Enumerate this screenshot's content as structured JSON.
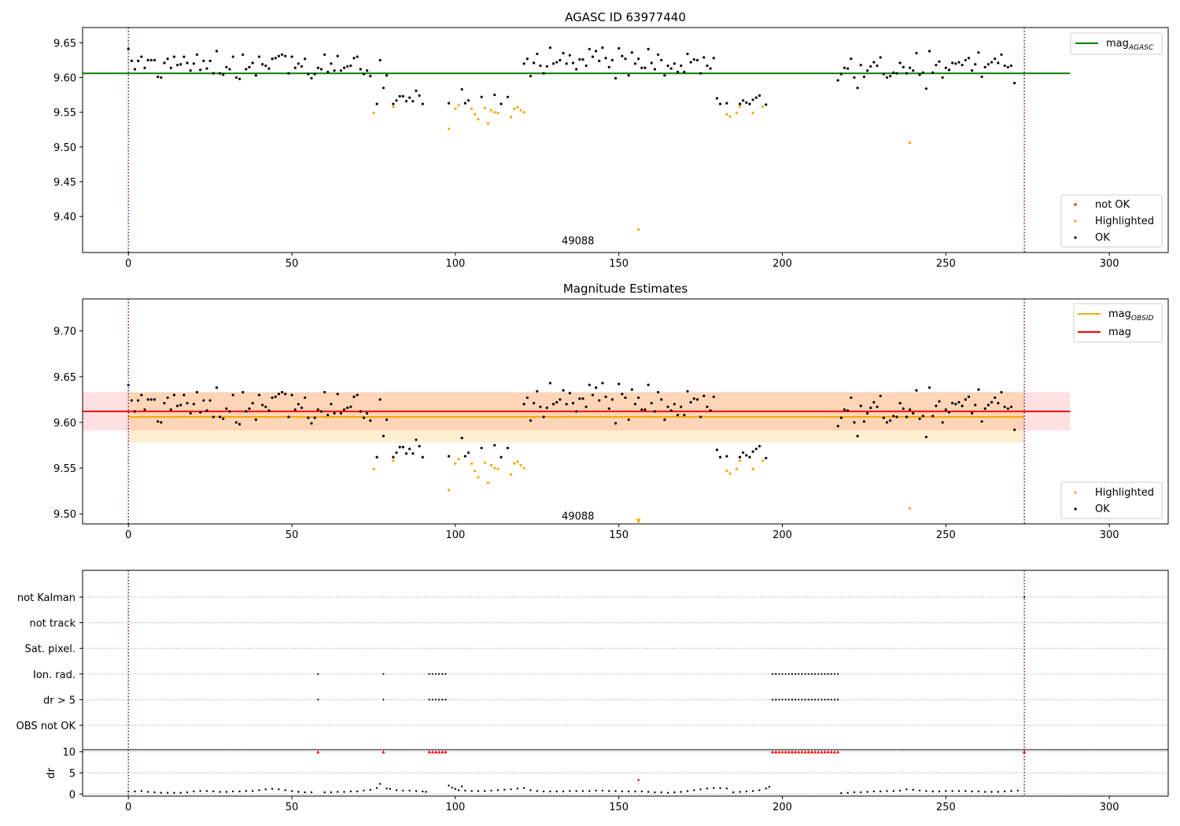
{
  "chart_data": [
    {
      "type": "scatter",
      "title": "AGASC ID 63977440",
      "xlim": [
        -14,
        318
      ],
      "ylim": [
        9.348,
        9.672
      ],
      "xticks": [
        0,
        50,
        100,
        150,
        200,
        250,
        300
      ],
      "yticks": [
        "9.40",
        "9.45",
        "9.50",
        "9.55",
        "9.60",
        "9.65"
      ],
      "ytick_values": [
        9.4,
        9.45,
        9.5,
        9.55,
        9.6,
        9.65
      ],
      "obsid_label": "49088",
      "obsid_x": 137.5,
      "obsid_y": 9.36,
      "vlines": [
        0,
        274
      ],
      "mag_agasc": {
        "value": 9.606,
        "x": [
          -14,
          288
        ],
        "color": "#008000"
      },
      "legend_line": {
        "label": "mag",
        "sub": "AGASC"
      },
      "legend_points": [
        "not OK",
        "Highlighted",
        "OK"
      ],
      "colors": {
        "ok": "#000000",
        "highlighted": "#ffa500",
        "not_ok": "#ff0000",
        "vline": "#800080"
      }
    },
    {
      "type": "scatter",
      "title": "Magnitude Estimates",
      "xlim": [
        -14,
        318
      ],
      "ylim": [
        9.489,
        9.735
      ],
      "xticks": [
        0,
        50,
        100,
        150,
        200,
        250,
        300
      ],
      "yticks": [
        "9.50",
        "9.55",
        "9.60",
        "9.65",
        "9.70"
      ],
      "ytick_values": [
        9.5,
        9.55,
        9.6,
        9.65,
        9.7
      ],
      "obsid_label": "49088",
      "obsid_x": 137.5,
      "obsid_y": 9.498,
      "vlines": [
        0,
        274
      ],
      "mag_obsid": {
        "value": 9.606,
        "band": [
          9.578,
          9.633
        ],
        "x": [
          0,
          274
        ],
        "color": "#ffa500"
      },
      "mag": {
        "value": 9.612,
        "band": [
          9.591,
          9.633
        ],
        "x": [
          -14,
          288
        ],
        "color": "#ff0000"
      },
      "legend_lines": [
        {
          "label": "mag",
          "sub": "OBSID"
        },
        {
          "label": "mag",
          "sub": ""
        }
      ],
      "legend_points": [
        "Highlighted",
        "OK"
      ],
      "offscale_marker": {
        "x": 156,
        "y": 9.492
      }
    },
    {
      "type": "scatter",
      "xlim": [
        -14,
        318
      ],
      "xticks": [
        0,
        50,
        100,
        150,
        200,
        250,
        300
      ],
      "flag_rows": [
        "not Kalman",
        "not track",
        "Sat. pixel.",
        "Ion. rad.",
        "dr > 5",
        "OBS not OK"
      ],
      "flags": {
        "Ion. rad.": [
          58,
          78,
          92,
          93,
          94,
          95,
          96,
          97,
          197,
          198,
          199,
          200,
          201,
          202,
          203,
          204,
          205,
          206,
          207,
          208,
          209,
          210,
          211,
          212,
          213,
          214,
          215,
          216,
          217
        ],
        "dr > 5": [
          58,
          78,
          92,
          93,
          94,
          95,
          96,
          97,
          197,
          198,
          199,
          200,
          201,
          202,
          203,
          204,
          205,
          206,
          207,
          208,
          209,
          210,
          211,
          212,
          213,
          214,
          215,
          216,
          217
        ],
        "not Kalman": [
          274
        ]
      },
      "dr_ylabel": "dr",
      "dr_ylim": [
        -0.5,
        10.5
      ],
      "dr_yticks": [
        "0",
        "5",
        "10"
      ],
      "dr_ytick_values": [
        0,
        5,
        10
      ],
      "dr_clipped_x": [
        58,
        78,
        92,
        93,
        94,
        95,
        96,
        97,
        197,
        198,
        199,
        200,
        201,
        202,
        203,
        204,
        205,
        206,
        207,
        208,
        209,
        210,
        211,
        212,
        213,
        214,
        215,
        216,
        217,
        274
      ],
      "dr_outlier": {
        "x": 156,
        "y": 3.3
      },
      "vlines": [
        0,
        274
      ]
    }
  ],
  "points_ok": [
    [
      0,
      9.641
    ],
    [
      1,
      9.624
    ],
    [
      2,
      9.612
    ],
    [
      3,
      9.624
    ],
    [
      4,
      9.63
    ],
    [
      5,
      9.614
    ],
    [
      6,
      9.625
    ],
    [
      7,
      9.625
    ],
    [
      8,
      9.625
    ],
    [
      9,
      9.601
    ],
    [
      10,
      9.6
    ],
    [
      11,
      9.621
    ],
    [
      12,
      9.627
    ],
    [
      13,
      9.614
    ],
    [
      14,
      9.63
    ],
    [
      15,
      9.618
    ],
    [
      16,
      9.619
    ],
    [
      17,
      9.63
    ],
    [
      18,
      9.621
    ],
    [
      19,
      9.61
    ],
    [
      20,
      9.62
    ],
    [
      21,
      9.633
    ],
    [
      22,
      9.611
    ],
    [
      23,
      9.624
    ],
    [
      24,
      9.613
    ],
    [
      25,
      9.624
    ],
    [
      26,
      9.606
    ],
    [
      27,
      9.638
    ],
    [
      28,
      9.606
    ],
    [
      29,
      9.604
    ],
    [
      30,
      9.615
    ],
    [
      31,
      9.612
    ],
    [
      32,
      9.63
    ],
    [
      33,
      9.6
    ],
    [
      34,
      9.598
    ],
    [
      35,
      9.633
    ],
    [
      36,
      9.612
    ],
    [
      37,
      9.615
    ],
    [
      38,
      9.621
    ],
    [
      39,
      9.603
    ],
    [
      40,
      9.63
    ],
    [
      41,
      9.619
    ],
    [
      42,
      9.617
    ],
    [
      43,
      9.613
    ],
    [
      44,
      9.627
    ],
    [
      45,
      9.628
    ],
    [
      46,
      9.631
    ],
    [
      47,
      9.633
    ],
    [
      48,
      9.631
    ],
    [
      49,
      9.606
    ],
    [
      50,
      9.63
    ],
    [
      51,
      9.614
    ],
    [
      52,
      9.62
    ],
    [
      53,
      9.616
    ],
    [
      54,
      9.627
    ],
    [
      55,
      9.605
    ],
    [
      56,
      9.599
    ],
    [
      57,
      9.605
    ],
    [
      58,
      9.614
    ],
    [
      59,
      9.612
    ],
    [
      60,
      9.633
    ],
    [
      61,
      9.608
    ],
    [
      62,
      9.62
    ],
    [
      63,
      9.61
    ],
    [
      64,
      9.631
    ],
    [
      65,
      9.61
    ],
    [
      66,
      9.614
    ],
    [
      67,
      9.616
    ],
    [
      68,
      9.617
    ],
    [
      69,
      9.628
    ],
    [
      70,
      9.63
    ],
    [
      71,
      9.612
    ],
    [
      72,
      9.605
    ],
    [
      73,
      9.61
    ],
    [
      74,
      9.602
    ],
    [
      76,
      9.562
    ],
    [
      77,
      9.625
    ],
    [
      78,
      9.585
    ],
    [
      79,
      9.603
    ],
    [
      81,
      9.562
    ],
    [
      82,
      9.567
    ],
    [
      83,
      9.573
    ],
    [
      84,
      9.573
    ],
    [
      85,
      9.566
    ],
    [
      86,
      9.571
    ],
    [
      87,
      9.566
    ],
    [
      88,
      9.581
    ],
    [
      89,
      9.574
    ],
    [
      90,
      9.562
    ],
    [
      98,
      9.563
    ],
    [
      102,
      9.583
    ],
    [
      103,
      9.563
    ],
    [
      104,
      9.567
    ],
    [
      108,
      9.572
    ],
    [
      112,
      9.575
    ],
    [
      114,
      9.562
    ],
    [
      116,
      9.572
    ],
    [
      121,
      9.62
    ],
    [
      122,
      9.627
    ],
    [
      123,
      9.602
    ],
    [
      124,
      9.621
    ],
    [
      125,
      9.634
    ],
    [
      126,
      9.617
    ],
    [
      127,
      9.606
    ],
    [
      128,
      9.616
    ],
    [
      129,
      9.643
    ],
    [
      130,
      9.62
    ],
    [
      131,
      9.622
    ],
    [
      132,
      9.625
    ],
    [
      133,
      9.635
    ],
    [
      134,
      9.62
    ],
    [
      135,
      9.632
    ],
    [
      136,
      9.621
    ],
    [
      137,
      9.612
    ],
    [
      138,
      9.626
    ],
    [
      139,
      9.626
    ],
    [
      140,
      9.617
    ],
    [
      141,
      9.641
    ],
    [
      142,
      9.63
    ],
    [
      143,
      9.638
    ],
    [
      144,
      9.624
    ],
    [
      145,
      9.643
    ],
    [
      146,
      9.628
    ],
    [
      147,
      9.615
    ],
    [
      148,
      9.625
    ],
    [
      149,
      9.599
    ],
    [
      150,
      9.642
    ],
    [
      151,
      9.631
    ],
    [
      152,
      9.627
    ],
    [
      153,
      9.603
    ],
    [
      154,
      9.636
    ],
    [
      155,
      9.62
    ],
    [
      156,
      9.627
    ],
    [
      157,
      9.614
    ],
    [
      158,
      9.614
    ],
    [
      159,
      9.641
    ],
    [
      160,
      9.621
    ],
    [
      161,
      9.612
    ],
    [
      162,
      9.633
    ],
    [
      163,
      9.625
    ],
    [
      164,
      9.603
    ],
    [
      165,
      9.617
    ],
    [
      166,
      9.613
    ],
    [
      167,
      9.62
    ],
    [
      168,
      9.608
    ],
    [
      169,
      9.617
    ],
    [
      170,
      9.608
    ],
    [
      171,
      9.634
    ],
    [
      172,
      9.622
    ],
    [
      173,
      9.626
    ],
    [
      174,
      9.625
    ],
    [
      175,
      9.606
    ],
    [
      176,
      9.629
    ],
    [
      177,
      9.617
    ],
    [
      178,
      9.613
    ],
    [
      179,
      9.628
    ],
    [
      180,
      9.57
    ],
    [
      181,
      9.562
    ],
    [
      183,
      9.563
    ],
    [
      187,
      9.562
    ],
    [
      188,
      9.567
    ],
    [
      189,
      9.564
    ],
    [
      190,
      9.562
    ],
    [
      191,
      9.568
    ],
    [
      192,
      9.571
    ],
    [
      193,
      9.574
    ],
    [
      195,
      9.561
    ],
    [
      217,
      9.596
    ],
    [
      218,
      9.605
    ],
    [
      219,
      9.614
    ],
    [
      220,
      9.613
    ],
    [
      221,
      9.627
    ],
    [
      222,
      9.6
    ],
    [
      223,
      9.585
    ],
    [
      224,
      9.618
    ],
    [
      225,
      9.601
    ],
    [
      226,
      9.61
    ],
    [
      227,
      9.616
    ],
    [
      228,
      9.622
    ],
    [
      229,
      9.617
    ],
    [
      230,
      9.629
    ],
    [
      231,
      9.605
    ],
    [
      232,
      9.6
    ],
    [
      233,
      9.602
    ],
    [
      234,
      9.607
    ],
    [
      235,
      9.606
    ],
    [
      236,
      9.621
    ],
    [
      237,
      9.615
    ],
    [
      238,
      9.606
    ],
    [
      239,
      9.614
    ],
    [
      240,
      9.61
    ],
    [
      241,
      9.635
    ],
    [
      242,
      9.604
    ],
    [
      243,
      9.607
    ],
    [
      244,
      9.584
    ],
    [
      245,
      9.638
    ],
    [
      246,
      9.607
    ],
    [
      247,
      9.618
    ],
    [
      248,
      9.623
    ],
    [
      249,
      9.6
    ],
    [
      250,
      9.614
    ],
    [
      251,
      9.611
    ],
    [
      252,
      9.621
    ],
    [
      253,
      9.62
    ],
    [
      254,
      9.622
    ],
    [
      255,
      9.618
    ],
    [
      256,
      9.625
    ],
    [
      257,
      9.628
    ],
    [
      258,
      9.61
    ],
    [
      259,
      9.619
    ],
    [
      260,
      9.636
    ],
    [
      261,
      9.601
    ],
    [
      262,
      9.615
    ],
    [
      263,
      9.619
    ],
    [
      264,
      9.622
    ],
    [
      265,
      9.627
    ],
    [
      266,
      9.621
    ],
    [
      267,
      9.633
    ],
    [
      268,
      9.617
    ],
    [
      269,
      9.615
    ],
    [
      270,
      9.617
    ],
    [
      271,
      9.592
    ]
  ],
  "points_highlighted": [
    [
      75,
      9.549
    ],
    [
      81,
      9.558
    ],
    [
      98,
      9.526
    ],
    [
      100,
      9.555
    ],
    [
      101,
      9.56
    ],
    [
      105,
      9.555
    ],
    [
      106,
      9.547
    ],
    [
      107,
      9.54
    ],
    [
      109,
      9.556
    ],
    [
      110,
      9.534
    ],
    [
      111,
      9.553
    ],
    [
      112,
      9.55
    ],
    [
      113,
      9.549
    ],
    [
      117,
      9.543
    ],
    [
      118,
      9.555
    ],
    [
      119,
      9.557
    ],
    [
      120,
      9.553
    ],
    [
      121,
      9.55
    ],
    [
      156,
      9.381
    ],
    [
      183,
      9.547
    ],
    [
      184,
      9.544
    ],
    [
      186,
      9.549
    ],
    [
      187,
      9.558
    ],
    [
      191,
      9.549
    ],
    [
      194,
      9.558
    ],
    [
      239,
      9.506
    ]
  ],
  "dr_points": [
    [
      0,
      0.6
    ],
    [
      2,
      0.6
    ],
    [
      4,
      0.7
    ],
    [
      6,
      0.5
    ],
    [
      8,
      0.4
    ],
    [
      10,
      0.3
    ],
    [
      12,
      0.3
    ],
    [
      14,
      0.3
    ],
    [
      16,
      0.3
    ],
    [
      18,
      0.4
    ],
    [
      20,
      0.6
    ],
    [
      22,
      0.7
    ],
    [
      24,
      0.7
    ],
    [
      26,
      0.6
    ],
    [
      28,
      0.5
    ],
    [
      30,
      0.5
    ],
    [
      32,
      0.6
    ],
    [
      34,
      0.6
    ],
    [
      36,
      0.7
    ],
    [
      38,
      0.7
    ],
    [
      40,
      0.9
    ],
    [
      42,
      1.1
    ],
    [
      44,
      1.2
    ],
    [
      46,
      1.1
    ],
    [
      48,
      0.9
    ],
    [
      50,
      0.7
    ],
    [
      52,
      0.5
    ],
    [
      54,
      0.4
    ],
    [
      56,
      0.4
    ],
    [
      60,
      0.4
    ],
    [
      62,
      0.4
    ],
    [
      64,
      0.5
    ],
    [
      66,
      0.5
    ],
    [
      68,
      0.6
    ],
    [
      70,
      0.6
    ],
    [
      72,
      0.8
    ],
    [
      74,
      1.0
    ],
    [
      76,
      1.4
    ],
    [
      77,
      2.4
    ],
    [
      79,
      1.3
    ],
    [
      80,
      1.2
    ],
    [
      82,
      0.9
    ],
    [
      84,
      0.8
    ],
    [
      86,
      0.8
    ],
    [
      88,
      0.7
    ],
    [
      90,
      0.6
    ],
    [
      91,
      0.5
    ],
    [
      98,
      2.0
    ],
    [
      99,
      1.5
    ],
    [
      100,
      1.2
    ],
    [
      101,
      0.9
    ],
    [
      102,
      1.8
    ],
    [
      103,
      0.8
    ],
    [
      105,
      0.7
    ],
    [
      107,
      0.7
    ],
    [
      109,
      0.7
    ],
    [
      111,
      0.8
    ],
    [
      113,
      0.9
    ],
    [
      115,
      1.0
    ],
    [
      117,
      1.1
    ],
    [
      119,
      1.3
    ],
    [
      121,
      1.4
    ],
    [
      123,
      0.9
    ],
    [
      125,
      0.7
    ],
    [
      127,
      0.6
    ],
    [
      129,
      0.6
    ],
    [
      131,
      0.6
    ],
    [
      133,
      0.6
    ],
    [
      135,
      0.7
    ],
    [
      137,
      0.7
    ],
    [
      139,
      0.7
    ],
    [
      141,
      0.7
    ],
    [
      143,
      0.8
    ],
    [
      145,
      0.8
    ],
    [
      147,
      0.7
    ],
    [
      149,
      0.7
    ],
    [
      151,
      0.6
    ],
    [
      153,
      0.6
    ],
    [
      155,
      0.6
    ],
    [
      157,
      0.6
    ],
    [
      159,
      0.5
    ],
    [
      161,
      0.4
    ],
    [
      163,
      0.4
    ],
    [
      165,
      0.3
    ],
    [
      167,
      0.4
    ],
    [
      169,
      0.5
    ],
    [
      171,
      0.7
    ],
    [
      173,
      0.9
    ],
    [
      175,
      1.1
    ],
    [
      177,
      1.3
    ],
    [
      179,
      1.4
    ],
    [
      181,
      1.4
    ],
    [
      183,
      1.3
    ],
    [
      185,
      0.4
    ],
    [
      187,
      0.5
    ],
    [
      189,
      0.6
    ],
    [
      191,
      0.7
    ],
    [
      193,
      0.9
    ],
    [
      195,
      1.3
    ],
    [
      196,
      1.7
    ],
    [
      218,
      0.2
    ],
    [
      220,
      0.3
    ],
    [
      222,
      0.4
    ],
    [
      224,
      0.4
    ],
    [
      226,
      0.5
    ],
    [
      228,
      0.6
    ],
    [
      230,
      0.6
    ],
    [
      232,
      0.7
    ],
    [
      234,
      0.7
    ],
    [
      236,
      0.8
    ],
    [
      238,
      1.1
    ],
    [
      240,
      1.0
    ],
    [
      242,
      0.8
    ],
    [
      244,
      0.7
    ],
    [
      246,
      0.6
    ],
    [
      248,
      0.6
    ],
    [
      250,
      0.7
    ],
    [
      252,
      0.7
    ],
    [
      254,
      0.7
    ],
    [
      256,
      0.7
    ],
    [
      258,
      0.6
    ],
    [
      260,
      0.6
    ],
    [
      262,
      0.5
    ],
    [
      264,
      0.5
    ],
    [
      266,
      0.5
    ],
    [
      268,
      0.6
    ],
    [
      270,
      0.7
    ],
    [
      272,
      0.8
    ]
  ]
}
